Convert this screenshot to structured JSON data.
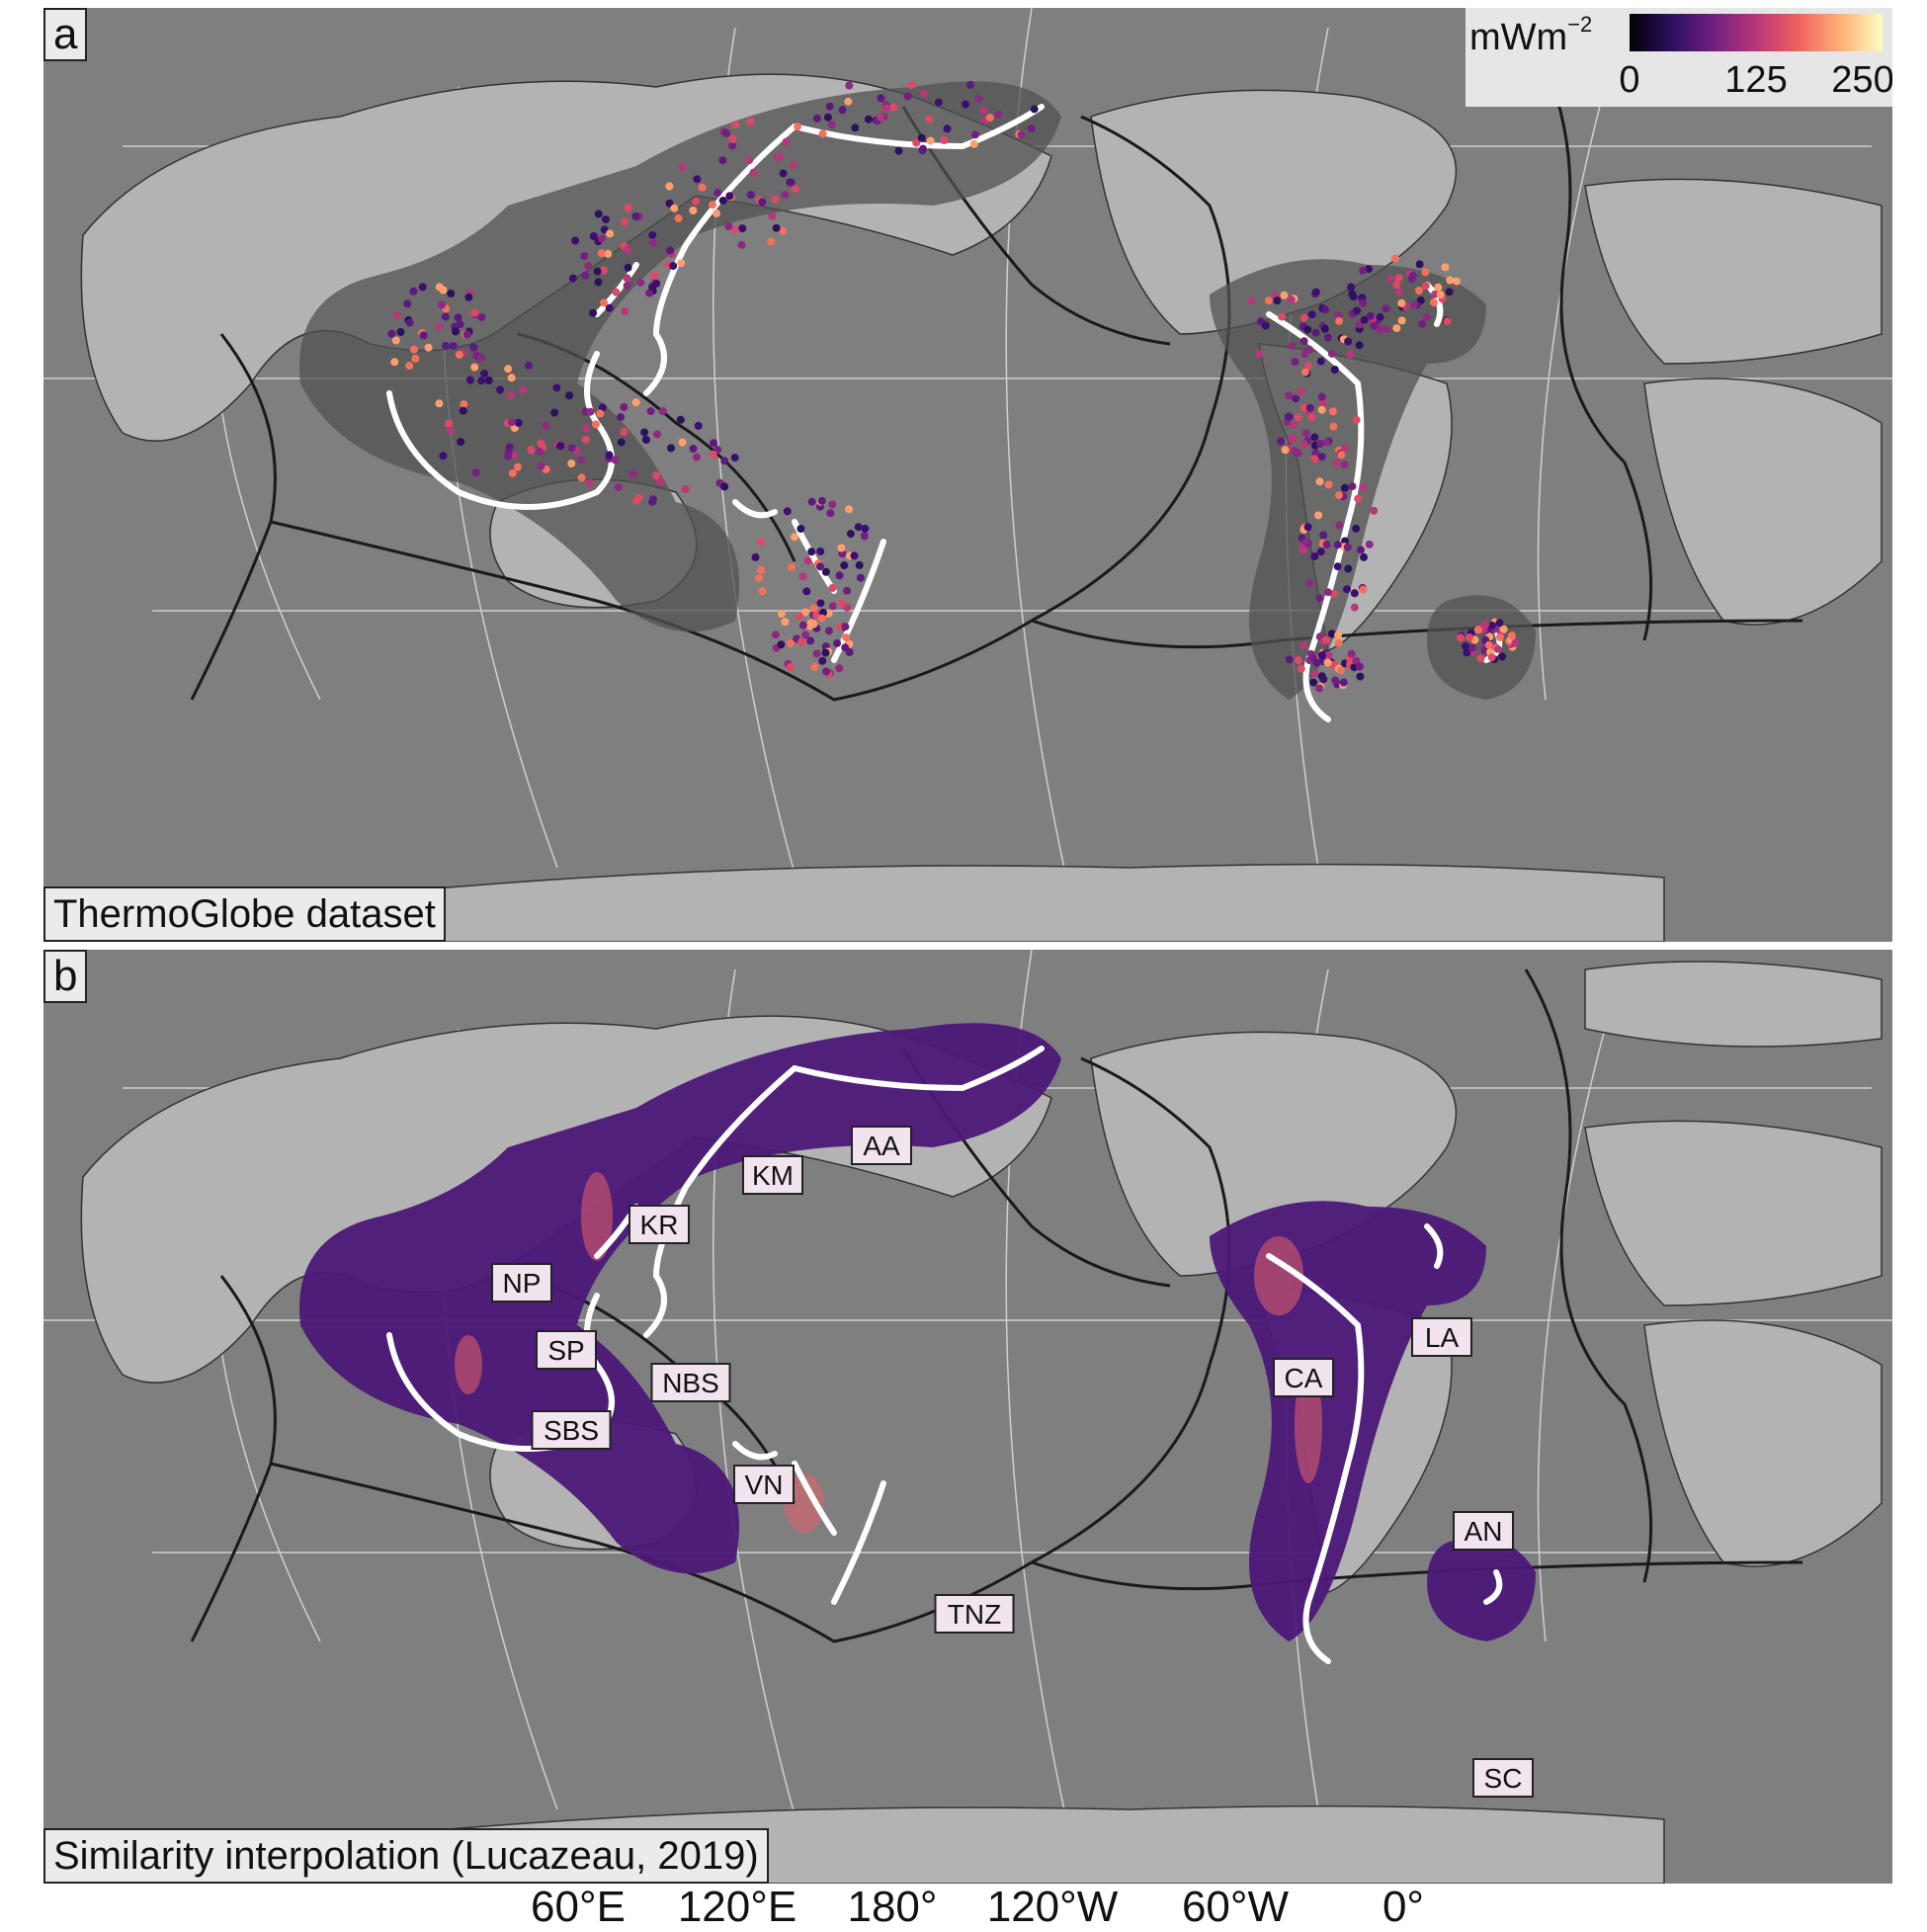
{
  "panels": [
    {
      "letter": "a",
      "caption": "ThermoGlobe dataset"
    },
    {
      "letter": "b",
      "caption": "Similarity interpolation (Lucazeau, 2019)"
    }
  ],
  "legend": {
    "unit_base": "mWm",
    "unit_exp": "−2",
    "ticks": [
      "0",
      "125",
      "250"
    ],
    "colormap": "magma",
    "range": [
      0,
      250
    ]
  },
  "axis": {
    "lon_labels": [
      "60°E",
      "120°E",
      "180°",
      "120°W",
      "60°W",
      "0°"
    ]
  },
  "segment_labels": [
    "AA",
    "KM",
    "KR",
    "NP",
    "SP",
    "NBS",
    "SBS",
    "VN",
    "TNZ",
    "CA",
    "LA",
    "AN",
    "SC"
  ],
  "colors": {
    "ocean": "#7f7f7f",
    "land": "#b3b3b3",
    "plate_boundary": "#1a1a1a",
    "trench": "#ffffff",
    "buffer": "#525252"
  }
}
